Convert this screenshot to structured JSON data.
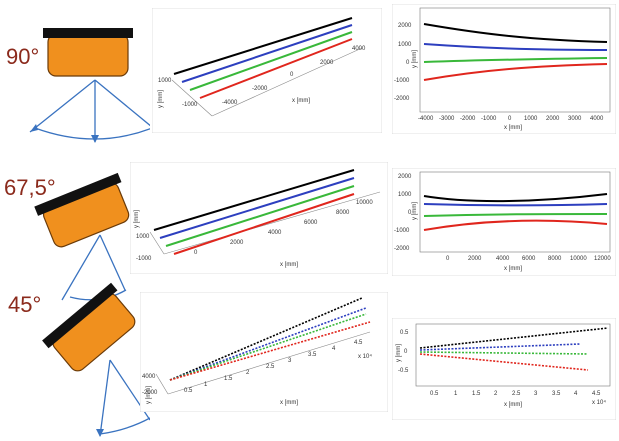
{
  "rows": [
    {
      "angle_label": "90°",
      "iso": {
        "x_ticks": [
          "-4000",
          "-2000",
          "0",
          "2000",
          "4000"
        ],
        "y_ticks": [
          "-1000"
        ],
        "z_tick": "1000",
        "x_label": "x [mm]",
        "y_label": "y [mm]"
      },
      "side": {
        "y_ticks": [
          "2000",
          "1000",
          "0",
          "-1000",
          "-2000"
        ],
        "x_ticks": [
          "-4000",
          "-3000",
          "-2000",
          "-1000",
          "0",
          "1000",
          "2000",
          "3000",
          "4000"
        ],
        "x_label": "x [mm]",
        "y_label": "y [mm]"
      }
    },
    {
      "angle_label": "67,5°",
      "iso": {
        "x_ticks": [
          "0",
          "2000",
          "4000",
          "6000",
          "8000",
          "10000"
        ],
        "y_ticks": [
          "-1000"
        ],
        "z_tick": "1000",
        "x_label": "x [mm]",
        "y_label": "y [mm]"
      },
      "side": {
        "y_ticks": [
          "2000",
          "1000",
          "0",
          "-1000",
          "-2000"
        ],
        "x_ticks": [
          "0",
          "2000",
          "4000",
          "6000",
          "8000",
          "10000",
          "12000"
        ],
        "x_label": "x [mm]",
        "y_label": "y [mm]"
      }
    },
    {
      "angle_label": "45°",
      "iso": {
        "x_ticks": [
          "0.5",
          "1",
          "1.5",
          "2",
          "2.5",
          "3",
          "3.5",
          "4",
          "4.5"
        ],
        "x_exp": "x 10⁴",
        "y_ticks": [
          "-2000"
        ],
        "z_tick": "4000",
        "x_label": "x [mm]",
        "y_label": "y [mm]"
      },
      "side": {
        "y_ticks": [
          "0.5",
          "0",
          "-0.5"
        ],
        "x_ticks": [
          "0.5",
          "1",
          "1.5",
          "2",
          "2.5",
          "3",
          "3.5",
          "4",
          "4.5"
        ],
        "x_exp": "x 10⁴",
        "x_label": "x [mm]",
        "y_label": "y [mm]"
      }
    }
  ],
  "colors": {
    "angle_text": "#8b2a1c",
    "sensor_body": "#f0901e",
    "sensor_top": "#111111",
    "beam": "#3a73c0",
    "series": [
      "#000000",
      "#2d3fbf",
      "#39b83a",
      "#e0261d"
    ]
  }
}
